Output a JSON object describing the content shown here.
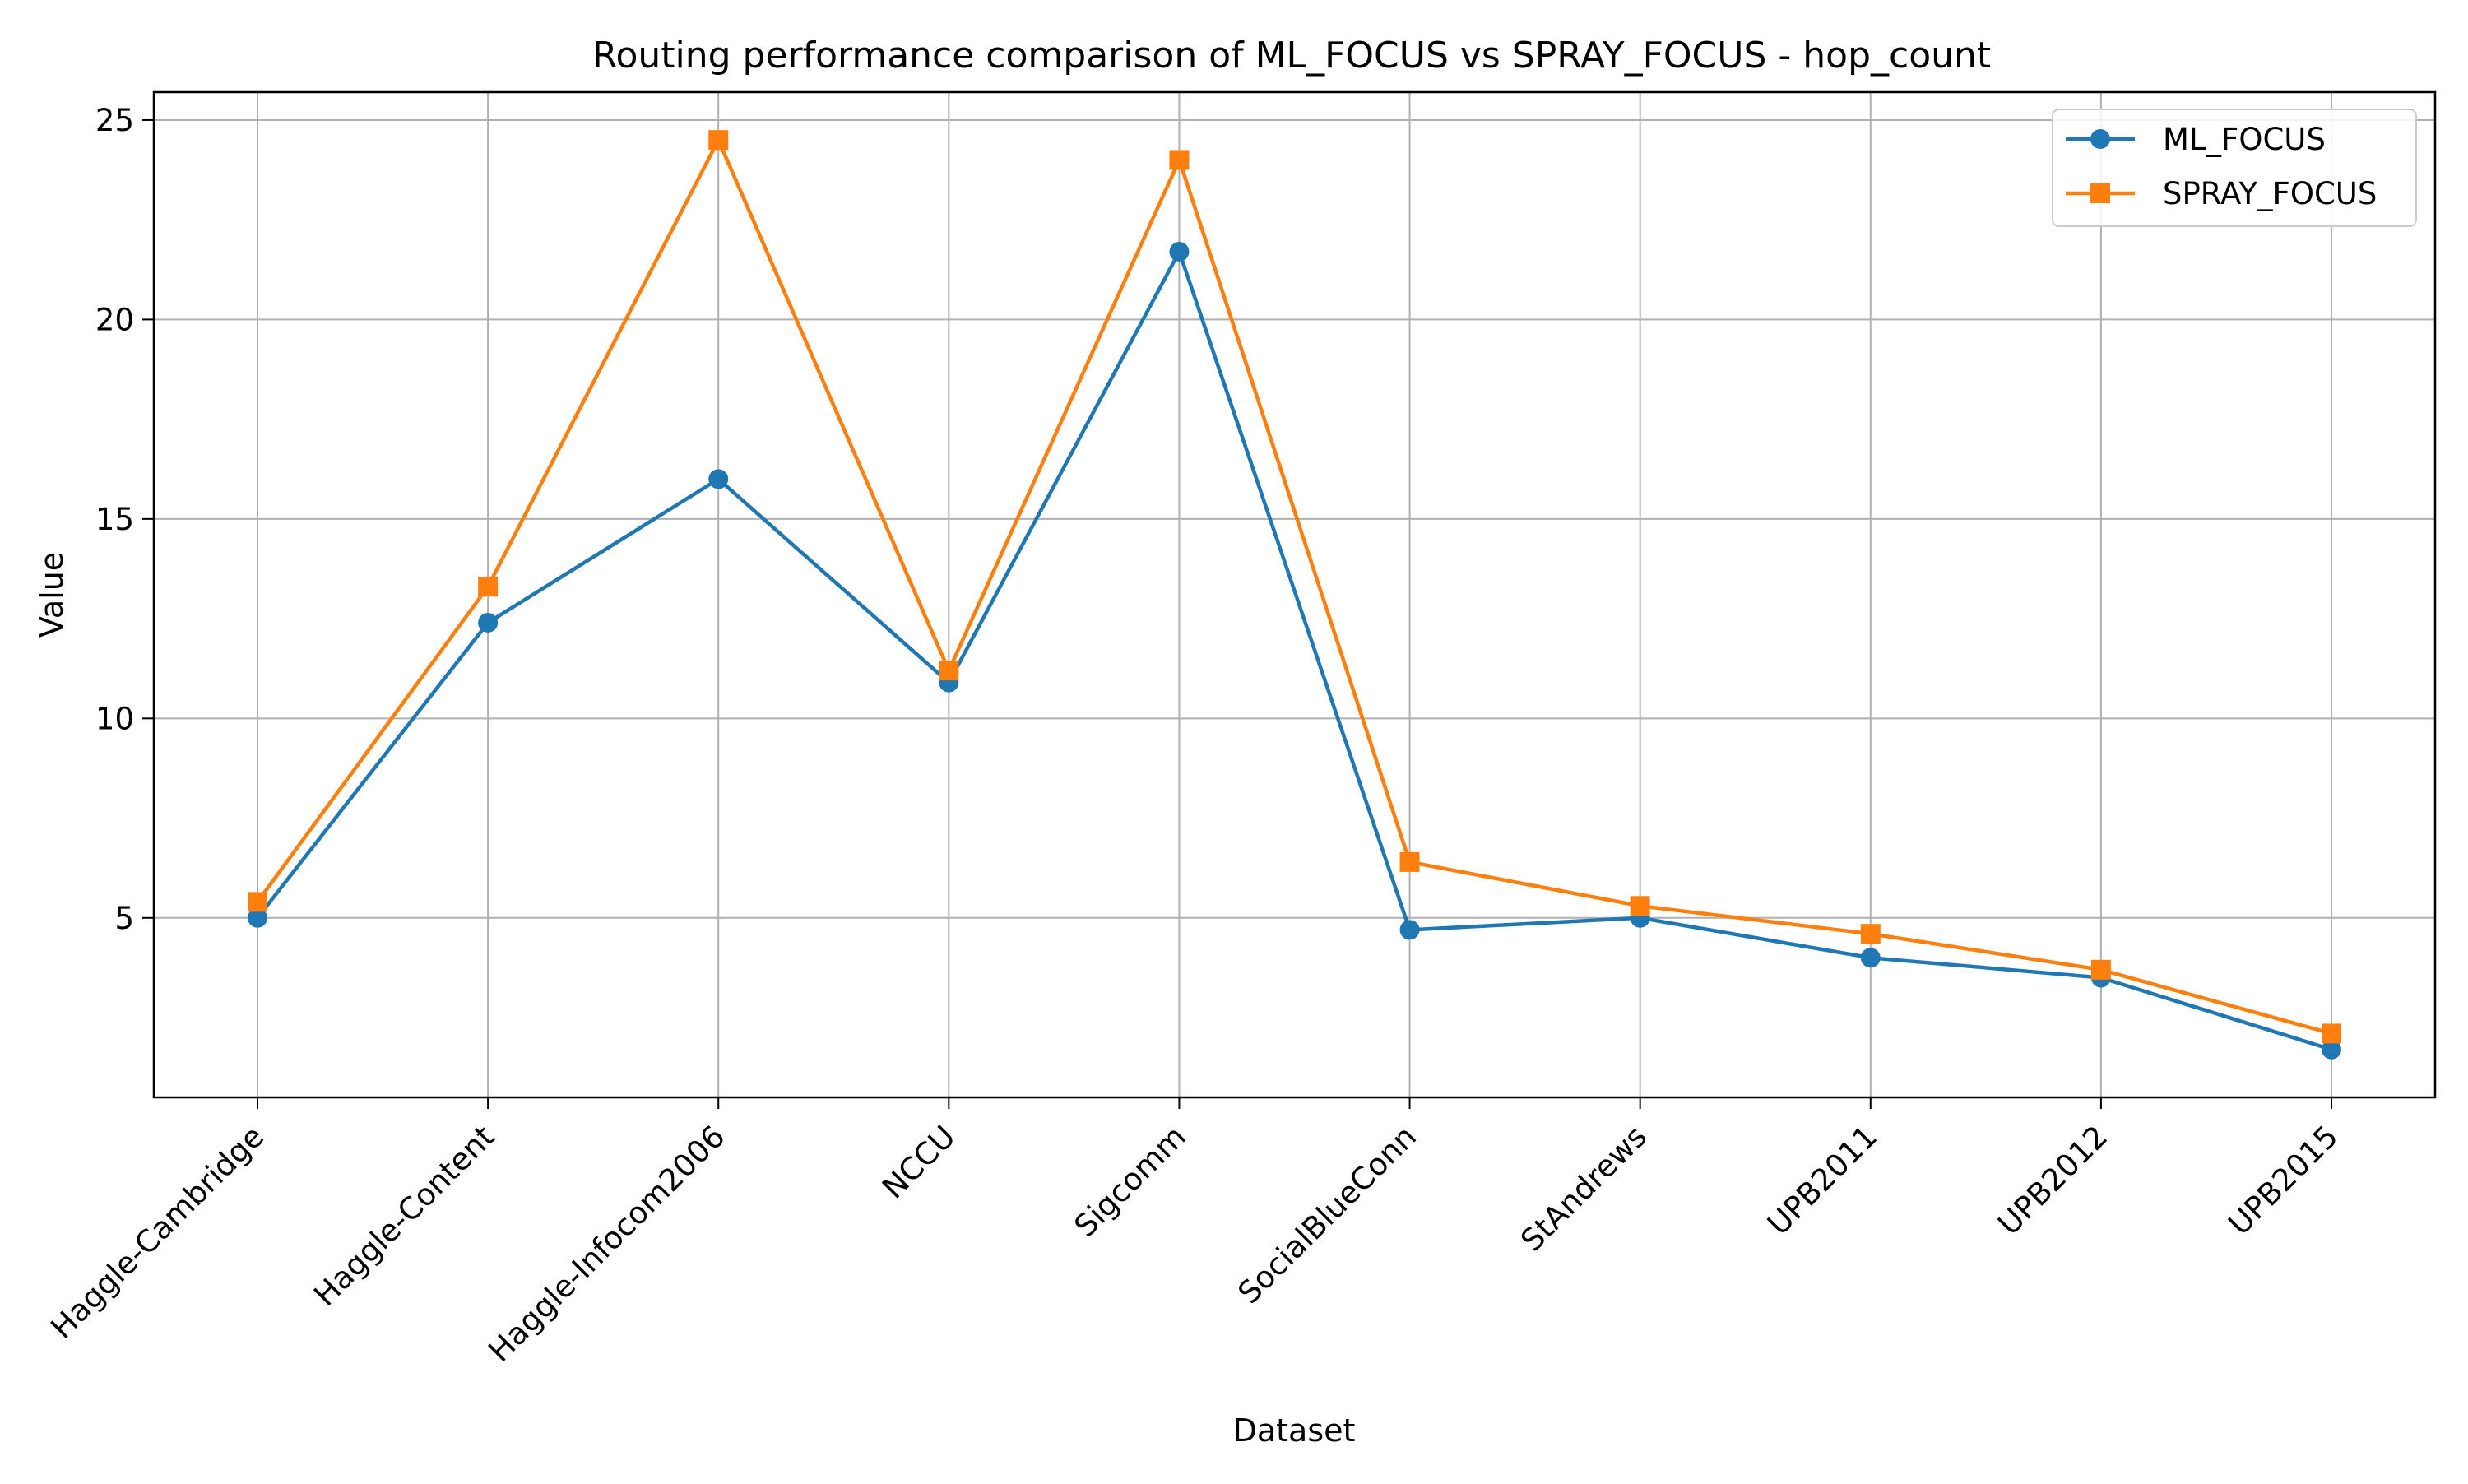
{
  "chart_data": {
    "type": "line",
    "title": "Routing performance comparison of ML_FOCUS vs SPRAY_FOCUS - hop_count",
    "xlabel": "Dataset",
    "ylabel": "Value",
    "categories": [
      "Haggle-Cambridge",
      "Haggle-Content",
      "Haggle-Infocom2006",
      "NCCU",
      "Sigcomm",
      "SocialBlueConn",
      "StAndrews",
      "UPB2011",
      "UPB2012",
      "UPB2015"
    ],
    "series": [
      {
        "name": "ML_FOCUS",
        "color": "#1f77b4",
        "marker": "circle",
        "values": [
          5.0,
          12.4,
          16.0,
          10.9,
          21.7,
          4.7,
          5.0,
          4.0,
          3.5,
          1.7
        ]
      },
      {
        "name": "SPRAY_FOCUS",
        "color": "#ff7f0e",
        "marker": "square",
        "values": [
          5.4,
          13.3,
          24.5,
          11.2,
          24.0,
          6.4,
          5.3,
          4.6,
          3.7,
          2.1
        ]
      }
    ],
    "ylim": [
      0.5,
      25.7
    ],
    "yticks": [
      5,
      10,
      15,
      20,
      25
    ],
    "grid": true,
    "legend_position": "top-right"
  }
}
